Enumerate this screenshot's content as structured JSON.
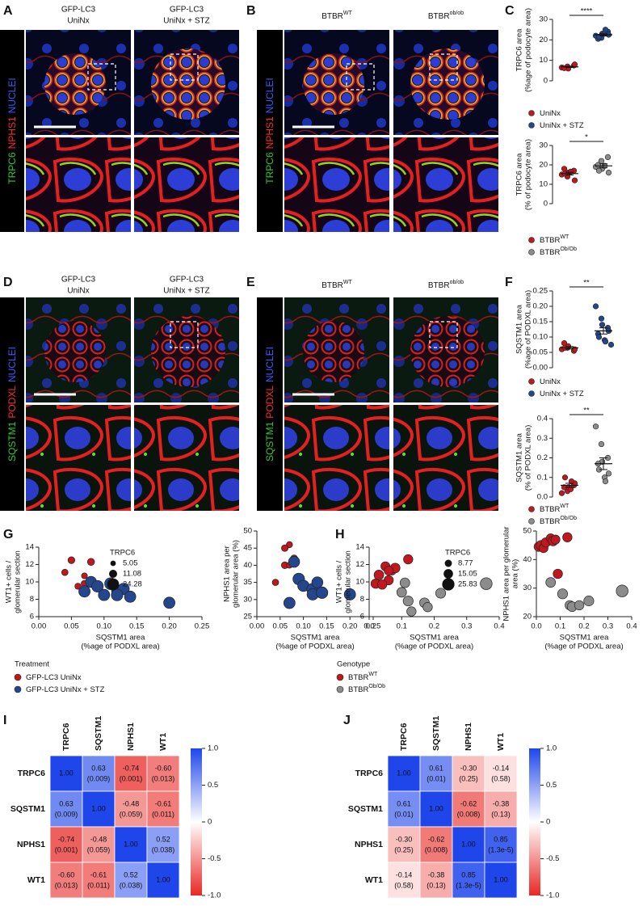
{
  "micrograph_panels": [
    {
      "label": "A",
      "columns": [
        [
          "GFP-LC3",
          "UniNx"
        ],
        [
          "GFP-LC3",
          "UniNx + STZ"
        ]
      ],
      "stains": [
        {
          "text": "TRPC6",
          "color": "#33cc33"
        },
        {
          "text": "NPHS1",
          "color": "#ff2a2a"
        },
        {
          "text": "NUCLEI",
          "color": "#3a5cff"
        }
      ]
    },
    {
      "label": "B",
      "columns": [
        {
          "base": "BTBR",
          "sup": "WT"
        },
        {
          "base": "BTBR",
          "sup": "ob/ob"
        }
      ],
      "stains": [
        {
          "text": "TRPC6",
          "color": "#33cc33"
        },
        {
          "text": "NPHS1",
          "color": "#ff2a2a"
        },
        {
          "text": "NUCLEI",
          "color": "#3a5cff"
        }
      ]
    },
    {
      "label": "D",
      "columns": [
        [
          "GFP-LC3",
          "UniNx"
        ],
        [
          "GFP-LC3",
          "UniNx + STZ"
        ]
      ],
      "stains": [
        {
          "text": "SQSTM1",
          "color": "#33cc33"
        },
        {
          "text": "PODXL",
          "color": "#ff2a2a"
        },
        {
          "text": "NUCLEI",
          "color": "#3a5cff"
        }
      ]
    },
    {
      "label": "E",
      "columns": [
        {
          "base": "BTBR",
          "sup": "WT"
        },
        {
          "base": "BTBR",
          "sup": "ob/ob"
        }
      ],
      "stains": [
        {
          "text": "SQSTM1",
          "color": "#33cc33"
        },
        {
          "text": "PODXL",
          "color": "#ff2a2a"
        },
        {
          "text": "NUCLEI",
          "color": "#3a5cff"
        }
      ]
    }
  ],
  "chart_data": [
    {
      "type": "dotplot",
      "panel_label": "C",
      "ylabel": [
        "TRPC6 area",
        "(%age of podocyte area)"
      ],
      "ylim": [
        0,
        30
      ],
      "yticks": [
        0,
        10,
        20,
        30
      ],
      "significance": "****",
      "groups": [
        {
          "name": "UniNx",
          "color": "#c0181e",
          "values": [
            6.5,
            7,
            6,
            7.5,
            8,
            6.2
          ],
          "mean": 6.8,
          "sem": 0.3
        },
        {
          "name": "UniNx + STZ",
          "color": "#24468c",
          "values": [
            22,
            21,
            23,
            24,
            22.5,
            20.5,
            21.5,
            23,
            25
          ],
          "mean": 22.5,
          "sem": 0.5
        }
      ]
    },
    {
      "type": "dotplot",
      "ylabel": [
        "TRPC6 area",
        "(% of podocyte area)"
      ],
      "ylim": [
        0,
        30
      ],
      "yticks": [
        0,
        10,
        20,
        30
      ],
      "significance": "*",
      "groups": [
        {
          "name": "BTBR",
          "name_sup": "WT",
          "color": "#c0181e",
          "values": [
            15,
            14,
            16,
            17,
            12,
            18,
            15.5,
            16.5
          ],
          "mean": 15.5,
          "sem": 0.7
        },
        {
          "name": "BTBR",
          "name_sup": "Ob/Ob",
          "color": "#8c8c8c",
          "values": [
            19,
            22,
            18,
            24,
            16,
            20,
            17,
            19.5
          ],
          "mean": 19.5,
          "sem": 1
        }
      ]
    },
    {
      "type": "dotplot",
      "panel_label": "F",
      "ylabel": [
        "SQSTM1 area",
        "(%age of PODXL area)"
      ],
      "ylim": [
        0,
        0.25
      ],
      "yticks": [
        {
          "value": 0,
          "label": "0.00"
        },
        0.05,
        {
          "value": 0.1,
          "label": "0.10"
        },
        0.15,
        {
          "value": 0.2,
          "label": "0.20"
        },
        0.25
      ],
      "significance": "**",
      "groups": [
        {
          "name": "UniNx",
          "color": "#c0181e",
          "values": [
            0.06,
            0.065,
            0.07,
            0.055,
            0.06,
            0.08,
            0.065
          ],
          "mean": 0.065,
          "sem": 0.004
        },
        {
          "name": "UniNx + STZ",
          "color": "#24468c",
          "values": [
            0.2,
            0.16,
            0.14,
            0.13,
            0.12,
            0.11,
            0.1,
            0.09,
            0.085,
            0.075
          ],
          "mean": 0.12,
          "sem": 0.01
        }
      ]
    },
    {
      "type": "dotplot",
      "ylabel": [
        "SQSTM1 area",
        "(% of PODXL area)"
      ],
      "ylim": [
        0,
        0.4
      ],
      "yticks": [
        {
          "value": 0,
          "label": "0.0"
        },
        0.1,
        0.2,
        0.3,
        0.4
      ],
      "significance": "**",
      "groups": [
        {
          "name": "BTBR",
          "name_sup": "WT",
          "color": "#c0181e",
          "values": [
            0.02,
            0.03,
            0.05,
            0.06,
            0.07,
            0.05,
            0.1,
            0.04,
            0.08
          ],
          "mean": 0.06,
          "sem": 0.01
        },
        {
          "name": "BTBR",
          "name_sup": "Ob/Ob",
          "color": "#8c8c8c",
          "values": [
            0.36,
            0.27,
            0.18,
            0.2,
            0.12,
            0.17,
            0.14,
            0.1,
            0.08
          ],
          "mean": 0.17,
          "sem": 0.03
        }
      ]
    },
    {
      "type": "scatter",
      "panel_label": "G",
      "xlabel": [
        "SQSTM1 area",
        "(%age of PODXL area)"
      ],
      "ylabel": [
        "WT1+ cells /",
        "glomerular section"
      ],
      "xlim": [
        0,
        0.25
      ],
      "xticks": [
        {
          "value": 0,
          "label": "0.00"
        },
        0.05,
        {
          "value": 0.1,
          "label": "0.10"
        },
        0.15,
        {
          "value": 0.2,
          "label": "0.20"
        },
        0.25
      ],
      "ylim": [
        6,
        14
      ],
      "yticks": [
        6,
        8,
        10,
        12,
        14
      ],
      "size_legend": {
        "title": "TRPC6",
        "values": [
          5.05,
          11.08,
          24.28
        ]
      },
      "legend_title": "Treatment",
      "series": [
        {
          "name": "GFP-LC3 UniNx",
          "color": "#c0181e",
          "x": [
            0.04,
            0.05,
            0.06,
            0.07,
            0.08,
            0.07
          ],
          "values": [
            11.1,
            12.5,
            9.5,
            9.8,
            12.3,
            10.7
          ],
          "sizes": [
            7,
            8,
            6.5,
            7.5,
            8.5,
            6
          ]
        },
        {
          "name": "GFP-LC3 UniNx + STZ",
          "color": "#24468c",
          "x": [
            0.07,
            0.08,
            0.09,
            0.1,
            0.11,
            0.12,
            0.13,
            0.12,
            0.14,
            0.2
          ],
          "values": [
            8.9,
            10,
            9.5,
            8.5,
            9.8,
            9,
            9.2,
            8.5,
            8.3,
            7.6
          ],
          "sizes": [
            22,
            21,
            23,
            22,
            24,
            21,
            22,
            23,
            22,
            22
          ]
        }
      ]
    },
    {
      "type": "scatter",
      "xlabel": [
        "SQSTM1 area",
        "(%age of PODXL area)"
      ],
      "ylabel": [
        "NPHS1 area per",
        "glomerular area (%)"
      ],
      "xlim": [
        0,
        0.25
      ],
      "xticks": [
        {
          "value": 0,
          "label": "0.00"
        },
        0.05,
        {
          "value": 0.1,
          "label": "0.10"
        },
        0.15,
        {
          "value": 0.2,
          "label": "0.20"
        },
        0.25
      ],
      "ylim": [
        25,
        50
      ],
      "yticks": [
        25,
        30,
        35,
        40,
        45,
        50
      ],
      "series": [
        {
          "color": "#c0181e",
          "x": [
            0.04,
            0.06,
            0.07,
            0.06,
            0.08,
            0.07
          ],
          "values": [
            35,
            40,
            46,
            45,
            42,
            40
          ],
          "sizes": [
            7,
            8,
            6.5,
            7.5,
            8.5,
            6
          ]
        },
        {
          "color": "#24468c",
          "x": [
            0.07,
            0.08,
            0.09,
            0.1,
            0.12,
            0.13,
            0.12,
            0.14,
            0.2
          ],
          "values": [
            29,
            41,
            36,
            34,
            33,
            35,
            31.5,
            32,
            31.5
          ],
          "sizes": [
            22,
            21,
            23,
            22,
            24,
            21,
            22,
            23,
            22
          ]
        }
      ]
    },
    {
      "type": "scatter",
      "panel_label": "H",
      "xlabel": [
        "SQSTM1 area",
        "(%age of PODXL area)"
      ],
      "ylabel": [
        "WT1+ cells /",
        "glomerular section"
      ],
      "xlim": [
        0,
        0.4
      ],
      "xticks": [
        {
          "value": 0,
          "label": "0.0"
        },
        0.1,
        0.2,
        0.3,
        0.4
      ],
      "ylim": [
        6,
        14
      ],
      "yticks": [
        6,
        8,
        10,
        12,
        14
      ],
      "size_legend": {
        "title": "TRPC6",
        "values": [
          8.77,
          15.05,
          25.83
        ]
      },
      "legend_title": "Genotype",
      "series": [
        {
          "name": "BTBR",
          "name_sup": "WT",
          "color": "#c0181e",
          "x": [
            0.02,
            0.03,
            0.05,
            0.06,
            0.07,
            0.08,
            0.06,
            0.12,
            0.04
          ],
          "values": [
            9.8,
            10.8,
            11.8,
            10.2,
            11.3,
            11.6,
            11.3,
            12.6,
            9.7
          ],
          "sizes": [
            15,
            16,
            14,
            15,
            13,
            16,
            14,
            15,
            15
          ]
        },
        {
          "name": "BTBR",
          "name_sup": "Ob/Ob",
          "color": "#8c8c8c",
          "x": [
            0.1,
            0.12,
            0.13,
            0.17,
            0.18,
            0.22,
            0.36,
            0.11
          ],
          "values": [
            8.8,
            7.8,
            6.6,
            7.6,
            7.1,
            8.7,
            9.8,
            9.9
          ],
          "sizes": [
            16,
            17,
            15,
            16,
            15,
            17,
            24,
            16
          ]
        }
      ]
    },
    {
      "type": "scatter",
      "xlabel": [
        "SQSTM1 area",
        "(%age of PODXL area)"
      ],
      "ylabel": [
        "NPHS1 area per glomerular",
        "area (%)"
      ],
      "xlim": [
        0,
        0.4
      ],
      "xticks": [
        {
          "value": 0,
          "label": "0.0"
        },
        0.1,
        0.2,
        0.3,
        0.4
      ],
      "ylim": [
        20,
        50
      ],
      "yticks": [
        20,
        30,
        40,
        50
      ],
      "series": [
        {
          "color": "#c0181e",
          "x": [
            0.01,
            0.02,
            0.03,
            0.04,
            0.06,
            0.07,
            0.08,
            0.13,
            0.09
          ],
          "values": [
            44.5,
            45,
            44,
            46,
            47.5,
            46.5,
            47,
            47.8,
            35
          ],
          "sizes": [
            15,
            16,
            14,
            15,
            13,
            16,
            14,
            15,
            15
          ]
        },
        {
          "color": "#8c8c8c",
          "x": [
            0.06,
            0.11,
            0.14,
            0.15,
            0.18,
            0.22,
            0.36
          ],
          "values": [
            32,
            28,
            24,
            23.5,
            24,
            25.5,
            29
          ],
          "sizes": [
            16,
            17,
            15,
            16,
            15,
            17,
            24
          ]
        }
      ]
    },
    {
      "type": "heatmap",
      "panel_label": "I",
      "columns": [
        "TRPC6",
        "SQSTM1",
        "NPHS1",
        "WT1"
      ],
      "rows": [
        "TRPC6",
        "SQSTM1",
        "NPHS1",
        "WT1"
      ],
      "values": [
        [
          1,
          0.63,
          -0.74,
          -0.6
        ],
        [
          0.63,
          1,
          -0.48,
          -0.61
        ],
        [
          -0.74,
          -0.48,
          1,
          0.52
        ],
        [
          -0.6,
          -0.61,
          0.52,
          1
        ]
      ],
      "value_labels": [
        [
          "1.00",
          "0.63",
          "-0.74",
          "-0.60"
        ],
        [
          "0.63",
          "1.00",
          "-0.48",
          "-0.61"
        ],
        [
          "-0.74",
          "-0.48",
          "1.00",
          "0.52"
        ],
        [
          "-0.60",
          "-0.61",
          "0.52",
          "1.00"
        ]
      ],
      "pvalue_labels": [
        [
          null,
          "(0.009)",
          "(0.001)",
          "(0.013)"
        ],
        [
          "(0.009)",
          null,
          "(0.059)",
          "(0.011)"
        ],
        [
          "(0.001)",
          "(0.059)",
          null,
          "(0.038)"
        ],
        [
          "(0.013)",
          "(0.011)",
          "(0.038)",
          null
        ]
      ],
      "vlim": [
        -1,
        1
      ],
      "colorbar_ticks": [
        {
          "value": 1,
          "label": "1.0"
        },
        0.5,
        0,
        -0.5,
        {
          "value": -1,
          "label": "-1.0"
        }
      ]
    },
    {
      "type": "heatmap",
      "panel_label": "J",
      "columns": [
        "TRPC6",
        "SQSTM1",
        "NPHS1",
        "WT1"
      ],
      "rows": [
        "TRPC6",
        "SQSTM1",
        "NPHS1",
        "WT1"
      ],
      "values": [
        [
          1,
          0.61,
          -0.3,
          -0.14
        ],
        [
          0.61,
          1,
          -0.62,
          -0.38
        ],
        [
          -0.3,
          -0.62,
          1,
          0.85
        ],
        [
          -0.14,
          -0.38,
          0.85,
          1
        ]
      ],
      "value_labels": [
        [
          "1.00",
          "0.61",
          "-0.30",
          "-0.14"
        ],
        [
          "0.61",
          "1.00",
          "-0.62",
          "-0.38"
        ],
        [
          "-0.30",
          "-0.62",
          "1.00",
          "0.85"
        ],
        [
          "-0.14",
          "-0.38",
          "0.85",
          "1.00"
        ]
      ],
      "pvalue_labels": [
        [
          null,
          "(0.01)",
          "(0.25)",
          "(0.58)"
        ],
        [
          "(0.01)",
          null,
          "(0.008)",
          "(0.13)"
        ],
        [
          "(0.25)",
          "(0.008)",
          null,
          "(1.3e-5)"
        ],
        [
          "(0.58)",
          "(0.13)",
          "(1.3e-5)",
          null
        ]
      ],
      "vlim": [
        -1,
        1
      ],
      "colorbar_ticks": [
        {
          "value": 1,
          "label": "1.0"
        },
        0.5,
        0,
        -0.5,
        {
          "value": -1,
          "label": "-1.0"
        }
      ]
    }
  ]
}
